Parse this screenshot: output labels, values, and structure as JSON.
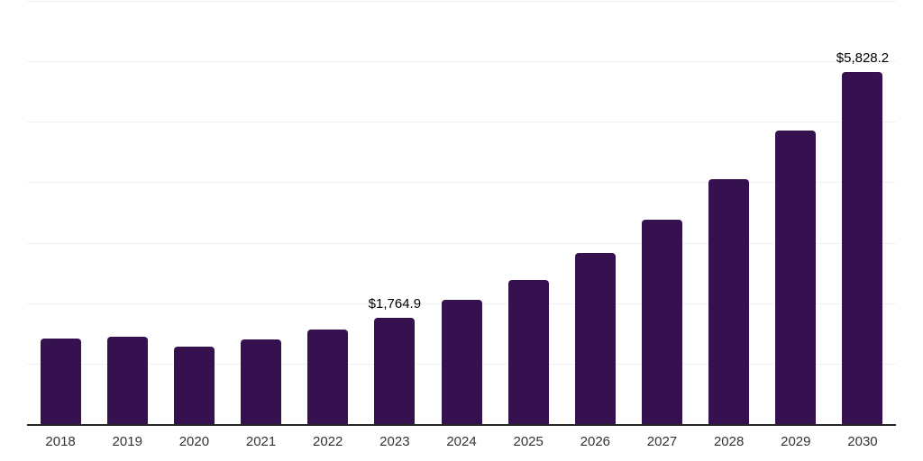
{
  "chart_data": {
    "type": "bar",
    "title": "",
    "xlabel": "",
    "ylabel": "",
    "categories": [
      "2018",
      "2019",
      "2020",
      "2021",
      "2022",
      "2023",
      "2024",
      "2025",
      "2026",
      "2027",
      "2028",
      "2029",
      "2030"
    ],
    "values": [
      1420,
      1445,
      1280,
      1405,
      1560,
      1764.9,
      2050,
      2385,
      2830,
      3380,
      4045,
      4855,
      5828.2
    ],
    "data_labels": {
      "2023": "$1,764.9",
      "2030": "$5,828.2"
    },
    "ylim": [
      0,
      7000
    ],
    "gridline_interval": 1000,
    "grid": "horizontal",
    "y_tick_labels_visible": false,
    "legend": "none",
    "colors": {
      "bar": "#35124F",
      "axis_line": "#262626",
      "gridline": "#F0F0F0",
      "tick_label": "#333333",
      "data_label": "#000000"
    }
  }
}
